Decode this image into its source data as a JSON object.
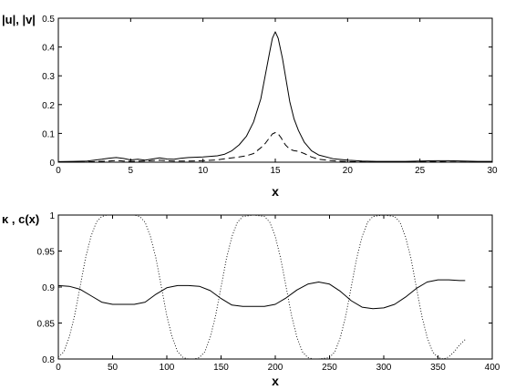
{
  "chart_data": [
    {
      "type": "line",
      "ylabel": "|u|, |v|",
      "xlabel": "x",
      "xlim": [
        0,
        30
      ],
      "ylim": [
        0,
        0.5
      ],
      "xticks": [
        "0",
        "5",
        "10",
        "15",
        "20",
        "25",
        "30"
      ],
      "yticks": [
        "0",
        "0.1",
        "0.2",
        "0.3",
        "0.4",
        "0.5"
      ],
      "grid": false,
      "series": [
        {
          "style": "solid",
          "x": [
            0,
            1,
            2,
            3,
            3.5,
            4,
            4.5,
            5,
            5.5,
            6,
            6.5,
            7,
            7.5,
            8,
            8.5,
            9,
            10,
            11,
            11.5,
            12,
            12.5,
            13,
            13.5,
            14,
            14.3,
            14.6,
            14.8,
            15,
            15.2,
            15.5,
            15.8,
            16,
            16.3,
            16.6,
            17,
            17.5,
            18,
            19,
            20,
            21,
            22,
            23,
            24,
            25,
            26,
            27,
            28,
            29,
            30
          ],
          "y": [
            0.002,
            0.003,
            0.004,
            0.01,
            0.014,
            0.016,
            0.013,
            0.008,
            0.01,
            0.007,
            0.011,
            0.015,
            0.011,
            0.01,
            0.014,
            0.016,
            0.018,
            0.022,
            0.028,
            0.04,
            0.06,
            0.09,
            0.14,
            0.22,
            0.3,
            0.38,
            0.43,
            0.453,
            0.43,
            0.36,
            0.27,
            0.21,
            0.15,
            0.11,
            0.07,
            0.04,
            0.025,
            0.012,
            0.007,
            0.004,
            0.003,
            0.003,
            0.003,
            0.004,
            0.005,
            0.005,
            0.004,
            0.003,
            0.003
          ]
        },
        {
          "style": "dashed",
          "x": [
            0,
            2,
            3.5,
            4,
            4.5,
            5,
            6,
            7,
            7.5,
            8,
            9,
            10,
            11,
            11.5,
            12,
            12.5,
            13,
            13.5,
            14,
            14.3,
            14.6,
            14.8,
            15,
            15.2,
            15.4,
            15.7,
            16,
            16.3,
            16.6,
            17,
            17.5,
            18,
            19,
            20,
            22,
            24,
            26,
            27,
            28,
            30
          ],
          "y": [
            0,
            0.001,
            0.004,
            0.006,
            0.004,
            0.003,
            0.004,
            0.007,
            0.005,
            0.004,
            0.004,
            0.005,
            0.008,
            0.012,
            0.015,
            0.018,
            0.022,
            0.03,
            0.05,
            0.065,
            0.085,
            0.098,
            0.103,
            0.098,
            0.085,
            0.06,
            0.045,
            0.04,
            0.038,
            0.03,
            0.018,
            0.01,
            0.005,
            0.002,
            0.001,
            0.001,
            0.002,
            0.001,
            0.001,
            0
          ]
        }
      ]
    },
    {
      "type": "line",
      "ylabel": "κ , c(x)",
      "xlabel": "x",
      "xlim": [
        0,
        400
      ],
      "ylim": [
        0.8,
        1
      ],
      "xticks": [
        "0",
        "50",
        "100",
        "150",
        "200",
        "250",
        "300",
        "350",
        "400"
      ],
      "yticks": [
        "0.8",
        "0.85",
        "0.9",
        "0.95",
        "1"
      ],
      "grid": false,
      "series": [
        {
          "style": "dotted",
          "x": [
            0,
            5,
            10,
            15,
            20,
            25,
            30,
            35,
            40,
            45,
            50,
            60,
            70,
            75,
            80,
            85,
            90,
            95,
            100,
            105,
            110,
            115,
            120,
            125,
            130,
            135,
            140,
            145,
            150,
            155,
            160,
            165,
            170,
            180,
            190,
            195,
            200,
            205,
            210,
            215,
            220,
            225,
            230,
            235,
            240,
            250,
            255,
            260,
            265,
            270,
            275,
            280,
            285,
            290,
            300,
            310,
            315,
            320,
            325,
            330,
            335,
            340,
            345,
            350,
            355,
            360,
            365,
            370,
            375
          ],
          "y": [
            0.803,
            0.81,
            0.83,
            0.86,
            0.9,
            0.94,
            0.97,
            0.99,
            0.998,
            1.0,
            1.0,
            1.0,
            1.0,
            0.998,
            0.99,
            0.97,
            0.94,
            0.9,
            0.86,
            0.83,
            0.81,
            0.802,
            0.8,
            0.8,
            0.802,
            0.81,
            0.83,
            0.86,
            0.9,
            0.94,
            0.97,
            0.99,
            0.998,
            1.0,
            0.998,
            0.99,
            0.97,
            0.94,
            0.9,
            0.86,
            0.83,
            0.81,
            0.802,
            0.8,
            0.8,
            0.802,
            0.81,
            0.83,
            0.86,
            0.9,
            0.94,
            0.97,
            0.99,
            0.998,
            1.0,
            0.998,
            0.99,
            0.97,
            0.94,
            0.9,
            0.86,
            0.83,
            0.81,
            0.802,
            0.8,
            0.803,
            0.81,
            0.82,
            0.827
          ]
        },
        {
          "style": "solid",
          "x": [
            0,
            10,
            20,
            30,
            40,
            50,
            60,
            70,
            80,
            90,
            100,
            110,
            120,
            130,
            140,
            150,
            160,
            170,
            180,
            190,
            200,
            210,
            220,
            230,
            240,
            250,
            260,
            270,
            280,
            290,
            300,
            310,
            320,
            330,
            340,
            350,
            360,
            370,
            375
          ],
          "y": [
            0.902,
            0.901,
            0.897,
            0.888,
            0.879,
            0.876,
            0.876,
            0.876,
            0.879,
            0.89,
            0.899,
            0.902,
            0.902,
            0.901,
            0.895,
            0.884,
            0.875,
            0.873,
            0.873,
            0.873,
            0.876,
            0.885,
            0.896,
            0.904,
            0.907,
            0.904,
            0.894,
            0.881,
            0.872,
            0.87,
            0.871,
            0.876,
            0.886,
            0.898,
            0.907,
            0.91,
            0.91,
            0.909,
            0.909
          ]
        }
      ]
    }
  ]
}
